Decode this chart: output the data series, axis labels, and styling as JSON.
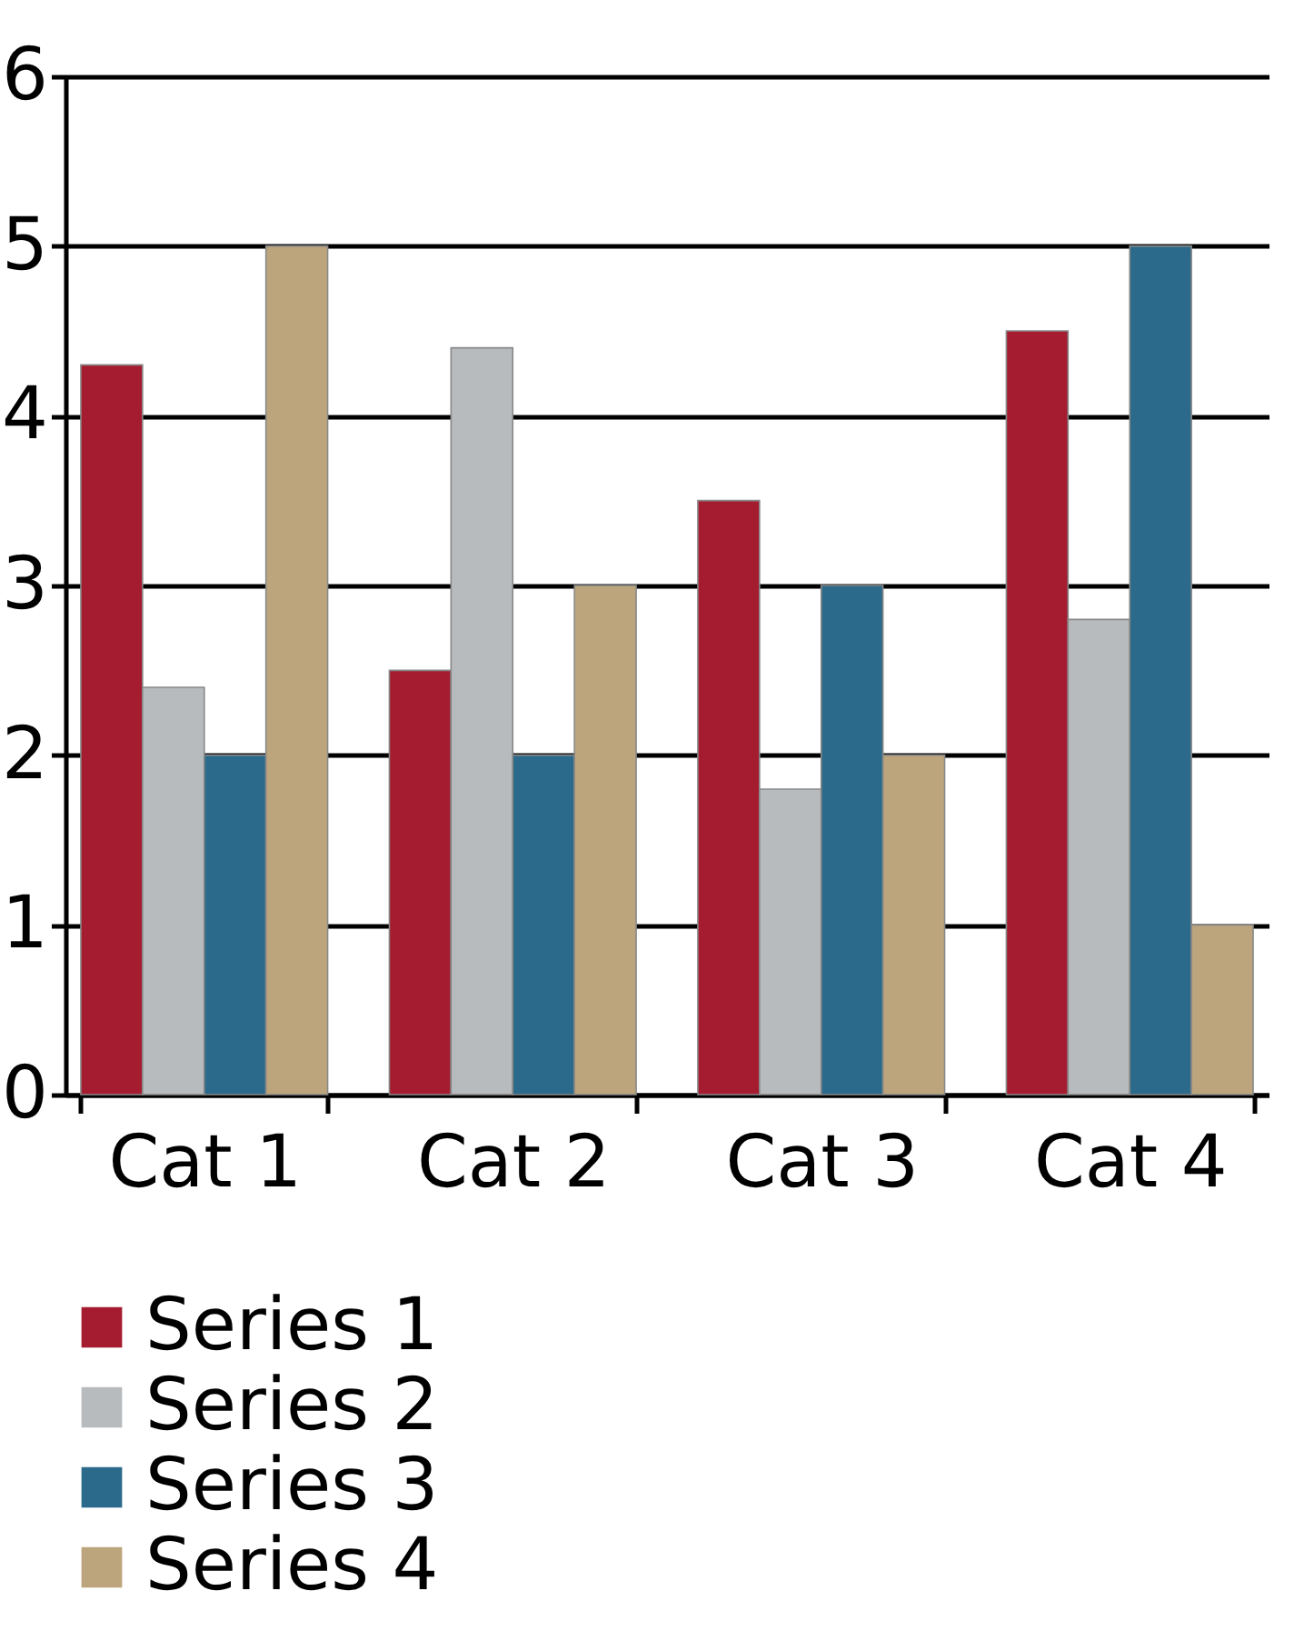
{
  "chart_data": {
    "type": "bar",
    "categories": [
      "Cat 1",
      "Cat 2",
      "Cat 3",
      "Cat 4"
    ],
    "series": [
      {
        "name": "Series 1",
        "color": "#a51c30",
        "values": [
          4.3,
          2.5,
          3.5,
          4.5
        ]
      },
      {
        "name": "Series 2",
        "color": "#b8bbbe",
        "values": [
          2.4,
          4.4,
          1.8,
          2.8
        ]
      },
      {
        "name": "Series 3",
        "color": "#2b6a8a",
        "values": [
          2,
          2,
          3,
          5
        ]
      },
      {
        "name": "Series 4",
        "color": "#bca57c",
        "values": [
          5,
          3,
          2,
          1
        ]
      }
    ],
    "ylim": [
      0,
      6
    ],
    "yticks": [
      0,
      1,
      2,
      3,
      4,
      5,
      6
    ],
    "grid": "y",
    "legend": "bottom"
  }
}
